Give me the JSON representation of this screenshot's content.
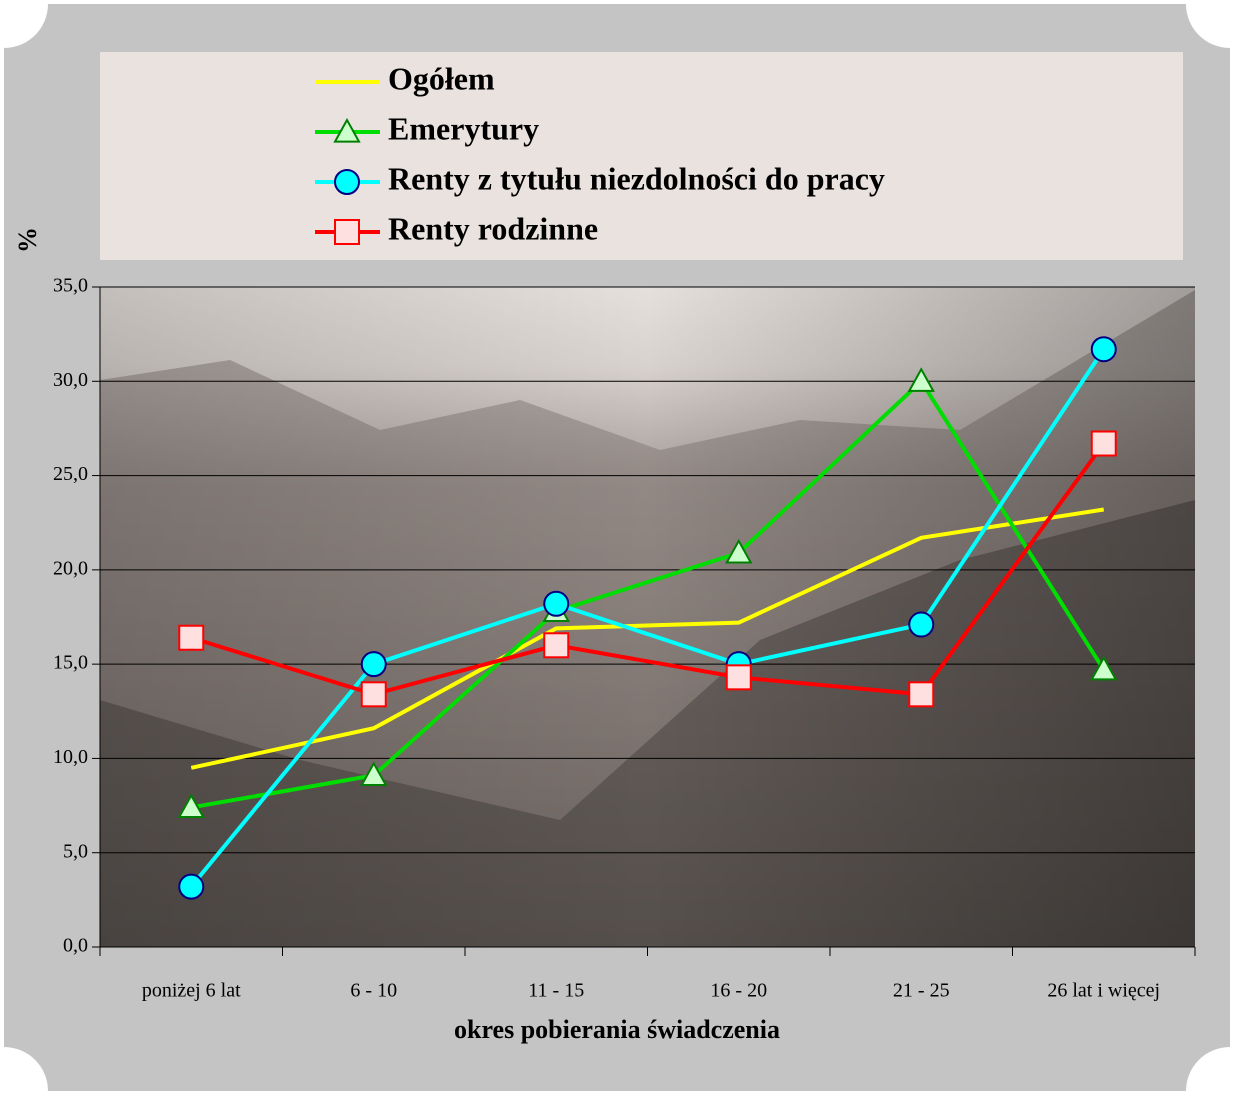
{
  "chart_data": {
    "type": "line",
    "y_label": "%",
    "x_label": "okres pobierania świadczenia",
    "categories": [
      "poniżej 6 lat",
      "6 - 10",
      "11 - 15",
      "16 - 20",
      "21 - 25",
      "26 lat i więcej"
    ],
    "series": [
      {
        "name": "Ogółem",
        "color": "#ffff00",
        "marker": "none",
        "values": [
          9.5,
          11.6,
          16.9,
          17.2,
          21.7,
          23.2
        ]
      },
      {
        "name": "Emerytury",
        "color": "#00dd00",
        "marker": "triangle",
        "marker_fill": "#ccffcc",
        "marker_stroke": "#008000",
        "values": [
          7.4,
          9.1,
          17.8,
          20.9,
          30.0,
          14.7
        ]
      },
      {
        "name": "Renty z tytułu niezdolności do pracy",
        "color": "#00ffff",
        "marker": "circle",
        "marker_fill": "#00ffff",
        "marker_stroke": "#000080",
        "values": [
          3.2,
          15.0,
          18.2,
          15.0,
          17.1,
          31.7
        ]
      },
      {
        "name": "Renty rodzinne",
        "color": "#ff0000",
        "marker": "square",
        "marker_fill": "#ffe0e0",
        "marker_stroke": "#ff0000",
        "values": [
          16.4,
          13.4,
          16.0,
          14.3,
          13.4,
          26.7
        ]
      }
    ],
    "ylim": [
      0,
      35
    ],
    "yticks": [
      {
        "value": 0,
        "label": "0,0"
      },
      {
        "value": 5,
        "label": "5,0"
      },
      {
        "value": 10,
        "label": "10,0"
      },
      {
        "value": 15,
        "label": "15,0"
      },
      {
        "value": 20,
        "label": "20,0"
      },
      {
        "value": 25,
        "label": "25,0"
      },
      {
        "value": 30,
        "label": "30,0"
      },
      {
        "value": 35,
        "label": "35,0"
      }
    ],
    "grid": true
  }
}
